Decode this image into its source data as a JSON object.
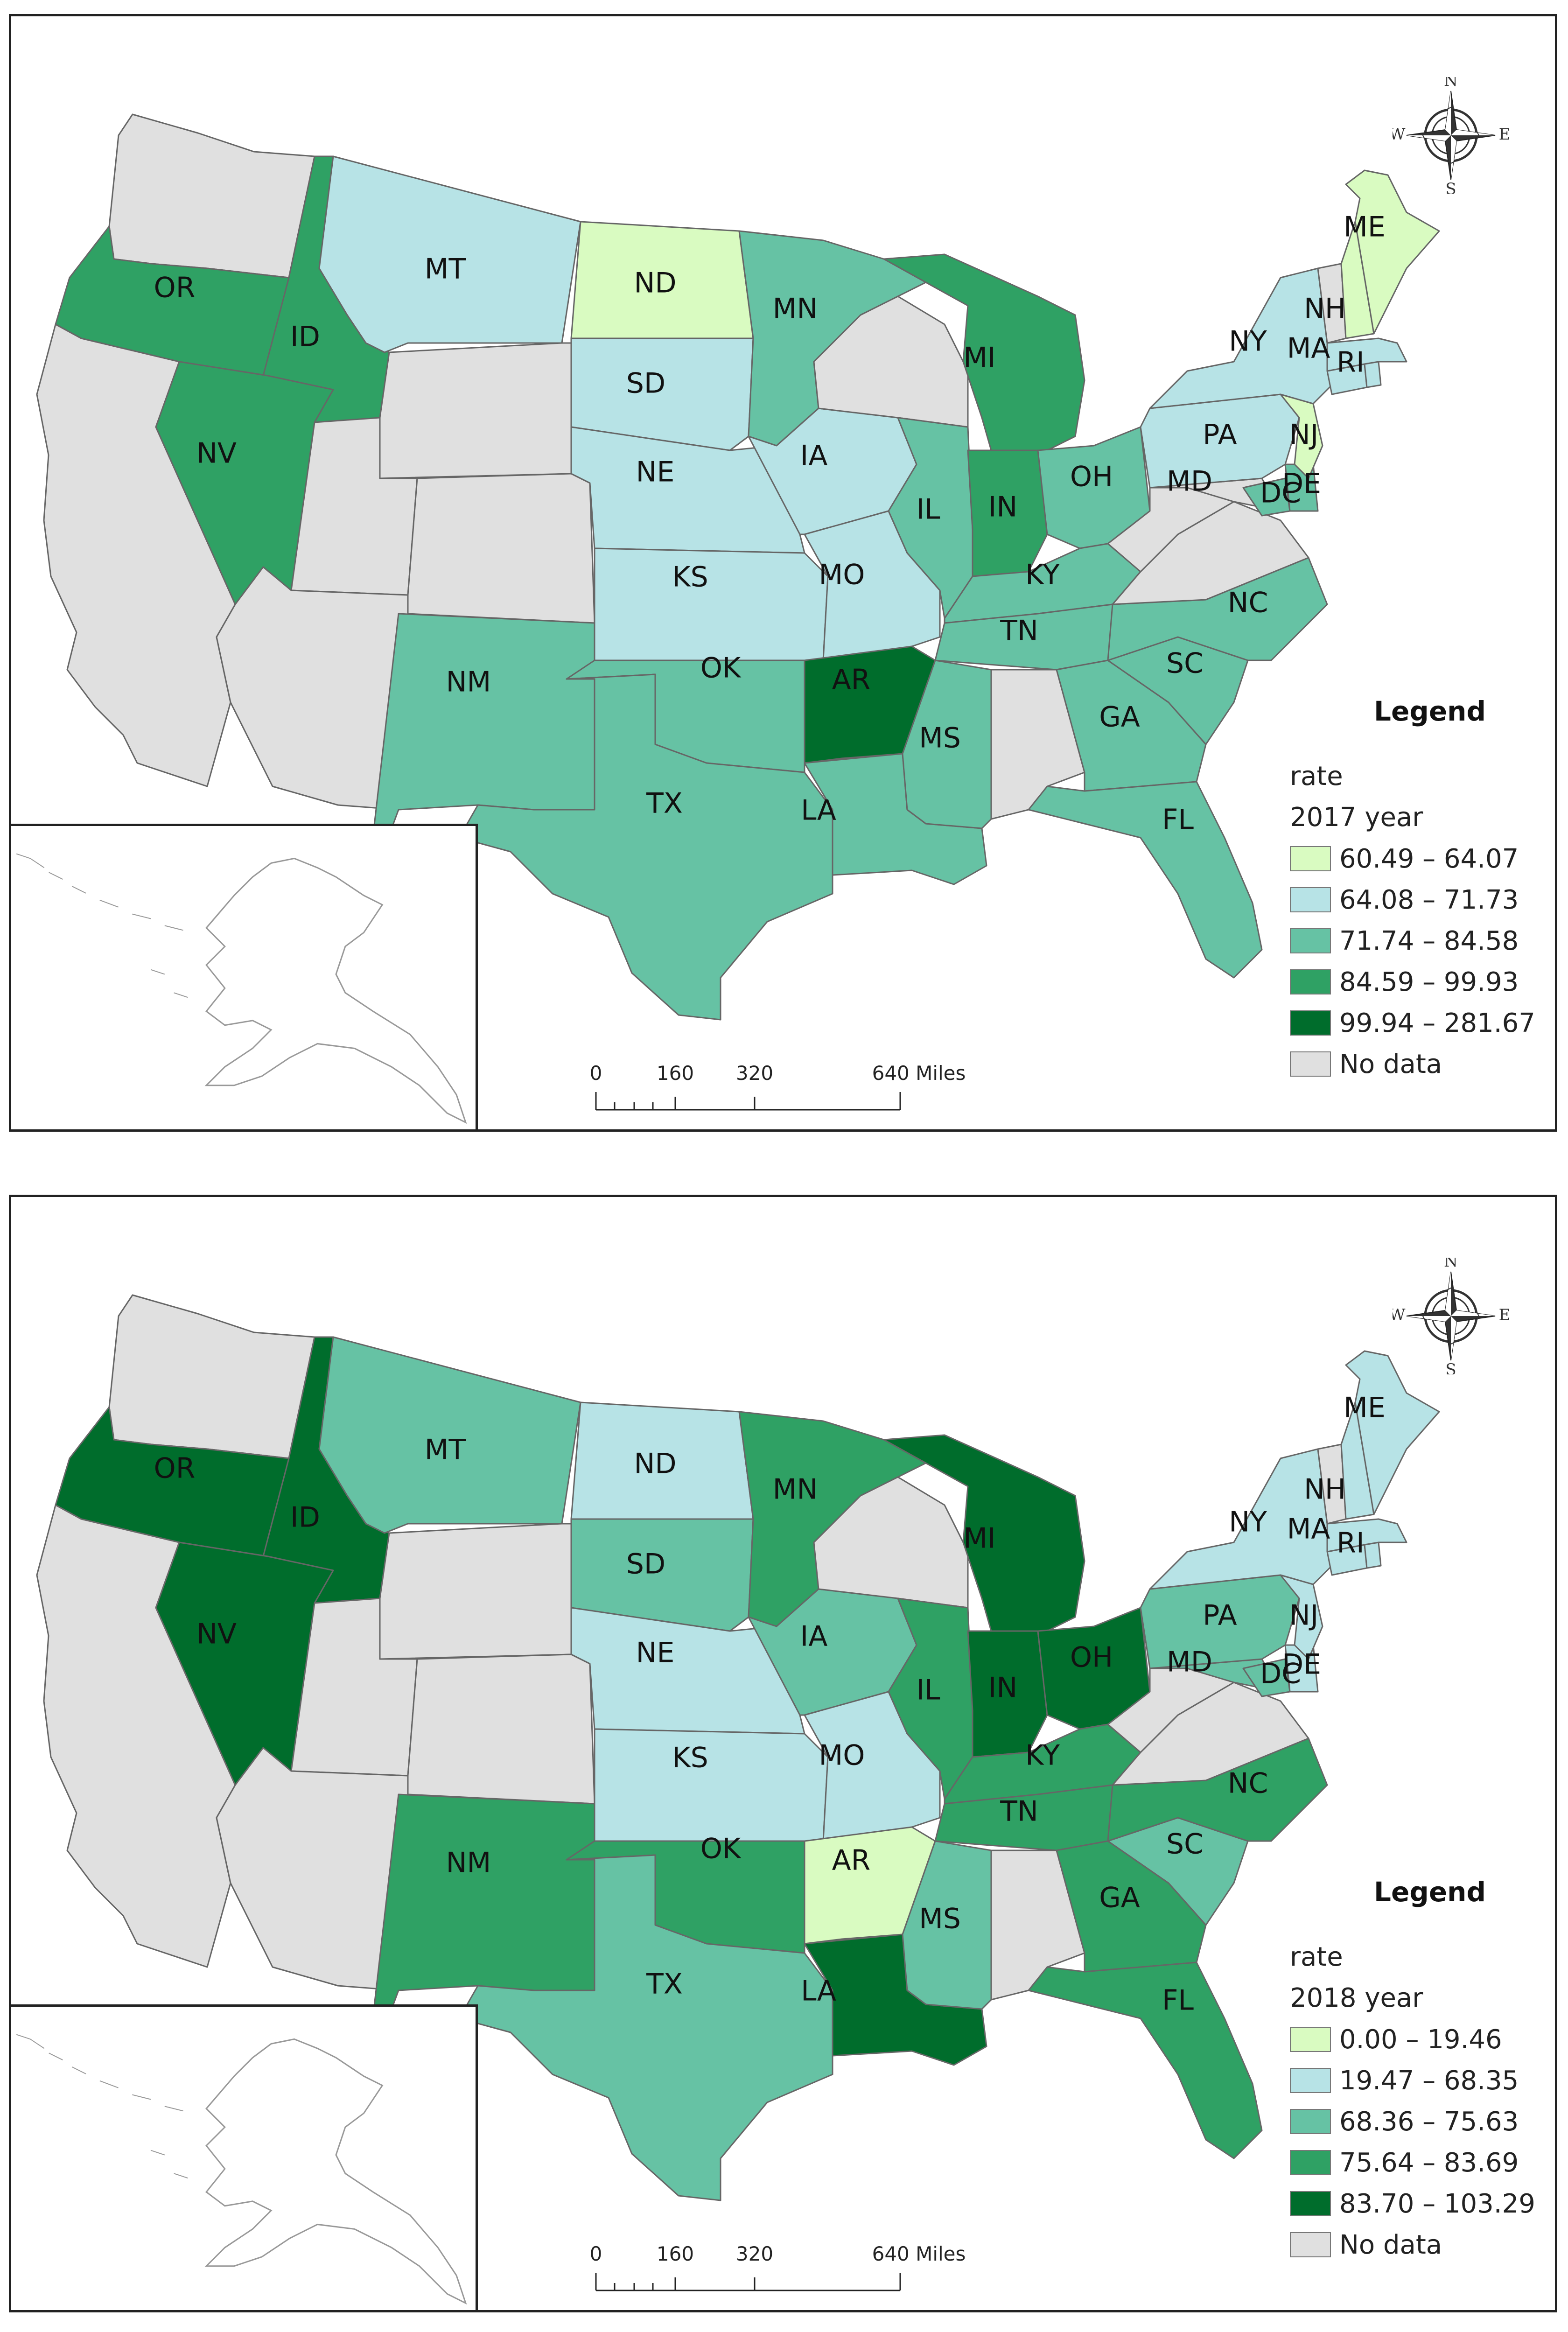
{
  "colors": {
    "c1": "#d9fbc1",
    "c2": "#b7e3e6",
    "c3": "#66c2a4",
    "c4": "#2fa164",
    "c5": "#006d2c",
    "nodata": "#e0e0e0",
    "stroke": "#666666"
  },
  "panels": [
    {
      "legend": {
        "title": "Legend",
        "field": "rate",
        "year": "2017 year",
        "items": [
          {
            "label": "60.49 – 64.07",
            "class": "c1"
          },
          {
            "label": "64.08 – 71.73",
            "class": "c2"
          },
          {
            "label": "71.74 – 84.58",
            "class": "c3"
          },
          {
            "label": "84.59 – 99.93",
            "class": "c4"
          },
          {
            "label": "99.94 – 281.67",
            "class": "c5"
          },
          {
            "label": "No data",
            "class": "nodata"
          }
        ]
      },
      "scale": {
        "ticks": [
          "0",
          "160",
          "320",
          "640 Miles"
        ]
      },
      "compass": {
        "n": "N",
        "s": "S",
        "e": "E",
        "w": "W"
      },
      "states": {
        "WA": {
          "cls": "nodata"
        },
        "OR": {
          "label": "OR",
          "cls": "c4"
        },
        "CA": {
          "cls": "nodata"
        },
        "ID": {
          "label": "ID",
          "cls": "c4"
        },
        "NV": {
          "label": "NV",
          "cls": "c4"
        },
        "MT": {
          "label": "MT",
          "cls": "c2"
        },
        "WY": {
          "cls": "nodata"
        },
        "UT": {
          "cls": "nodata"
        },
        "AZ": {
          "cls": "nodata"
        },
        "CO": {
          "cls": "nodata"
        },
        "NM": {
          "label": "NM",
          "cls": "c3"
        },
        "ND": {
          "label": "ND",
          "cls": "c1"
        },
        "SD": {
          "label": "SD",
          "cls": "c2"
        },
        "NE": {
          "label": "NE",
          "cls": "c2"
        },
        "KS": {
          "label": "KS",
          "cls": "c2"
        },
        "OK": {
          "label": "OK",
          "cls": "c3"
        },
        "TX": {
          "label": "TX",
          "cls": "c3"
        },
        "MN": {
          "label": "MN",
          "cls": "c3"
        },
        "IA": {
          "label": "IA",
          "cls": "c2"
        },
        "MO": {
          "label": "MO",
          "cls": "c2"
        },
        "AR": {
          "label": "AR",
          "cls": "c5"
        },
        "LA": {
          "label": "LA",
          "cls": "c3"
        },
        "WI": {
          "cls": "nodata"
        },
        "IL": {
          "label": "IL",
          "cls": "c3"
        },
        "MI": {
          "label": "MI",
          "cls": "c4"
        },
        "IN": {
          "label": "IN",
          "cls": "c4"
        },
        "OH": {
          "label": "OH",
          "cls": "c3"
        },
        "KY": {
          "label": "KY",
          "cls": "c3"
        },
        "TN": {
          "label": "TN",
          "cls": "c3"
        },
        "MS": {
          "label": "MS",
          "cls": "c3"
        },
        "AL": {
          "cls": "nodata"
        },
        "GA": {
          "label": "GA",
          "cls": "c3"
        },
        "FL": {
          "label": "FL",
          "cls": "c3"
        },
        "SC": {
          "label": "SC",
          "cls": "c3"
        },
        "NC": {
          "label": "NC",
          "cls": "c3"
        },
        "VA": {
          "cls": "nodata"
        },
        "WV": {
          "cls": "nodata"
        },
        "MD": {
          "label": "MD",
          "cls": "nodata"
        },
        "DC": {
          "label": "DC",
          "cls": "c3"
        },
        "DE": {
          "label": "DE",
          "cls": "c3"
        },
        "PA": {
          "label": "PA",
          "cls": "c2"
        },
        "NJ": {
          "label": "NJ",
          "cls": "c1"
        },
        "NY": {
          "label": "NY",
          "cls": "c2"
        },
        "CT": {
          "cls": "c2"
        },
        "RI": {
          "label": "RI",
          "cls": "c2"
        },
        "MA": {
          "label": "MA",
          "cls": "c2"
        },
        "VT": {
          "cls": "nodata"
        },
        "NH": {
          "label": "NH",
          "cls": "c1"
        },
        "ME": {
          "label": "ME",
          "cls": "c1"
        }
      }
    },
    {
      "legend": {
        "title": "Legend",
        "field": "rate",
        "year": "2018 year",
        "items": [
          {
            "label": "0.00 – 19.46",
            "class": "c1"
          },
          {
            "label": "19.47 – 68.35",
            "class": "c2"
          },
          {
            "label": "68.36 – 75.63",
            "class": "c3"
          },
          {
            "label": "75.64 – 83.69",
            "class": "c4"
          },
          {
            "label": "83.70 – 103.29",
            "class": "c5"
          },
          {
            "label": "No data",
            "class": "nodata"
          }
        ]
      },
      "scale": {
        "ticks": [
          "0",
          "160",
          "320",
          "640 Miles"
        ]
      },
      "compass": {
        "n": "N",
        "s": "S",
        "e": "E",
        "w": "W"
      },
      "states": {
        "WA": {
          "cls": "nodata"
        },
        "OR": {
          "label": "OR",
          "cls": "c5"
        },
        "CA": {
          "cls": "nodata"
        },
        "ID": {
          "label": "ID",
          "cls": "c5"
        },
        "NV": {
          "label": "NV",
          "cls": "c5"
        },
        "MT": {
          "label": "MT",
          "cls": "c3"
        },
        "WY": {
          "cls": "nodata"
        },
        "UT": {
          "cls": "nodata"
        },
        "AZ": {
          "cls": "nodata"
        },
        "CO": {
          "cls": "nodata"
        },
        "NM": {
          "label": "NM",
          "cls": "c4"
        },
        "ND": {
          "label": "ND",
          "cls": "c2"
        },
        "SD": {
          "label": "SD",
          "cls": "c3"
        },
        "NE": {
          "label": "NE",
          "cls": "c2"
        },
        "KS": {
          "label": "KS",
          "cls": "c2"
        },
        "OK": {
          "label": "OK",
          "cls": "c4"
        },
        "TX": {
          "label": "TX",
          "cls": "c3"
        },
        "MN": {
          "label": "MN",
          "cls": "c4"
        },
        "IA": {
          "label": "IA",
          "cls": "c3"
        },
        "MO": {
          "label": "MO",
          "cls": "c2"
        },
        "AR": {
          "label": "AR",
          "cls": "c1"
        },
        "LA": {
          "label": "LA",
          "cls": "c5"
        },
        "WI": {
          "cls": "nodata"
        },
        "IL": {
          "label": "IL",
          "cls": "c4"
        },
        "MI": {
          "label": "MI",
          "cls": "c5"
        },
        "IN": {
          "label": "IN",
          "cls": "c5"
        },
        "OH": {
          "label": "OH",
          "cls": "c5"
        },
        "KY": {
          "label": "KY",
          "cls": "c4"
        },
        "TN": {
          "label": "TN",
          "cls": "c4"
        },
        "MS": {
          "label": "MS",
          "cls": "c3"
        },
        "AL": {
          "cls": "nodata"
        },
        "GA": {
          "label": "GA",
          "cls": "c4"
        },
        "FL": {
          "label": "FL",
          "cls": "c4"
        },
        "SC": {
          "label": "SC",
          "cls": "c3"
        },
        "NC": {
          "label": "NC",
          "cls": "c4"
        },
        "VA": {
          "cls": "nodata"
        },
        "WV": {
          "cls": "nodata"
        },
        "MD": {
          "label": "MD",
          "cls": "c3"
        },
        "DC": {
          "label": "DC",
          "cls": "c3"
        },
        "DE": {
          "label": "DE",
          "cls": "c2"
        },
        "PA": {
          "label": "PA",
          "cls": "c3"
        },
        "NJ": {
          "label": "NJ",
          "cls": "c2"
        },
        "NY": {
          "label": "NY",
          "cls": "c2"
        },
        "CT": {
          "cls": "c2"
        },
        "RI": {
          "label": "RI",
          "cls": "c2"
        },
        "MA": {
          "label": "MA",
          "cls": "c2"
        },
        "VT": {
          "cls": "nodata"
        },
        "NH": {
          "label": "NH",
          "cls": "c2"
        },
        "ME": {
          "label": "ME",
          "cls": "c2"
        }
      }
    }
  ]
}
